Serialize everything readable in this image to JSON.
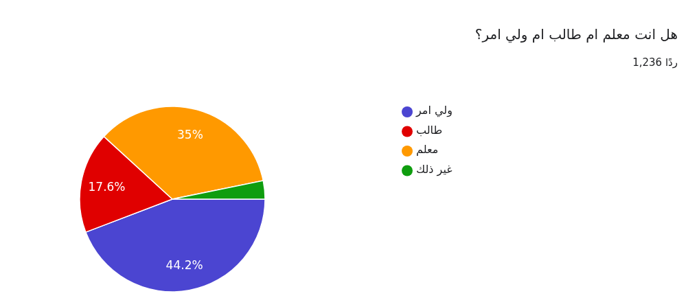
{
  "chart_data": {
    "type": "pie",
    "title": "هل انت معلم ام طالب ام ولي امر؟",
    "subtitle": "1,236 ردًا",
    "categories": [
      "ولي امر",
      "طالب",
      "معلم",
      "غير ذلك"
    ],
    "values": [
      44.2,
      17.6,
      35,
      3.2
    ],
    "colors": [
      "#4b45d1",
      "#e00000",
      "#ff9900",
      "#0f9d0f"
    ],
    "value_labels": [
      "44.2%",
      "17.6%",
      "35%",
      null
    ],
    "legend": "right"
  }
}
